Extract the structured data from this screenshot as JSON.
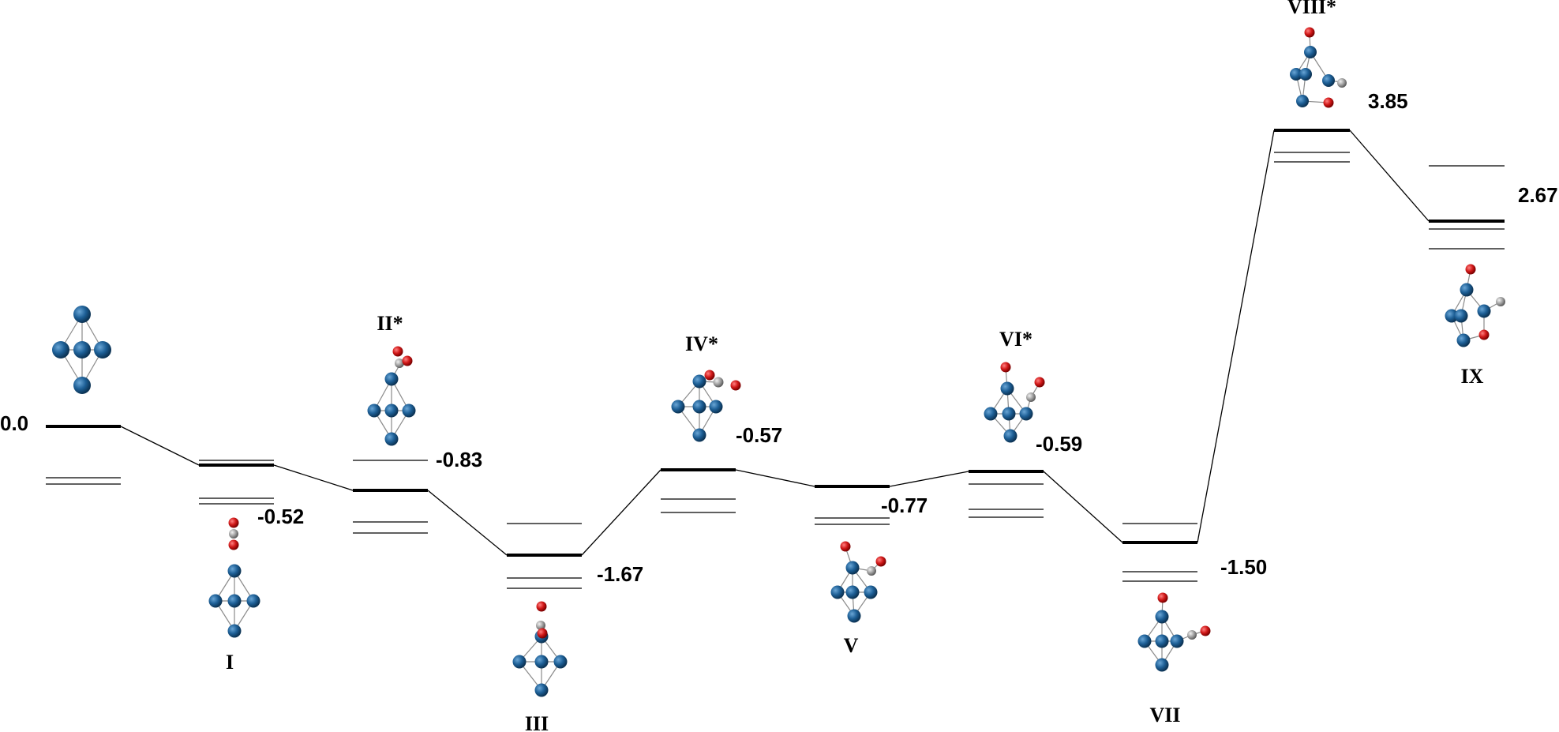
{
  "diagram": {
    "type": "energy-profile",
    "colors": {
      "metal": "#1d5f96",
      "oxygen": "#d01818",
      "carbon": "#9a9a9a",
      "bond": "#8a8a8a",
      "line": "#000000"
    },
    "states": [
      {
        "id": "s0",
        "label": "",
        "energy": "0.0",
        "molecule": "bare-cluster"
      },
      {
        "id": "s1",
        "label": "I",
        "energy": "-0.52",
        "molecule": "co2-on-top-vertical"
      },
      {
        "id": "s2",
        "label": "II*",
        "energy": "-0.83",
        "molecule": "co2-tilted-top"
      },
      {
        "id": "s3",
        "label": "III",
        "energy": "-1.67",
        "molecule": "co2-bridging"
      },
      {
        "id": "s4",
        "label": "IV*",
        "energy": "-0.57",
        "molecule": "co2-bent"
      },
      {
        "id": "s5",
        "label": "V",
        "energy": "-0.77",
        "molecule": "co-plus-o"
      },
      {
        "id": "s6",
        "label": "VI*",
        "energy": "-0.59",
        "molecule": "co-plus-o"
      },
      {
        "id": "s7",
        "label": "VII",
        "energy": "-1.50",
        "molecule": "co-plus-o"
      },
      {
        "id": "s8",
        "label": "VIII*",
        "energy": "3.85",
        "molecule": "o-insert"
      },
      {
        "id": "s9",
        "label": "IX",
        "energy": "2.67",
        "molecule": "o-insert"
      }
    ]
  }
}
